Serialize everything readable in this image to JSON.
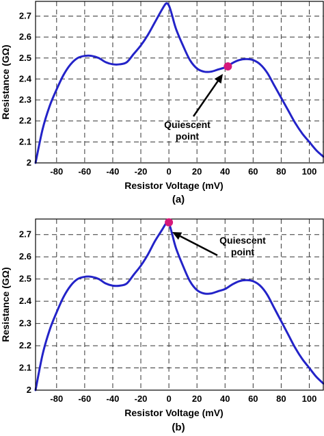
{
  "chart_data": [
    {
      "type": "line",
      "panel_label": "(a)",
      "xlabel": "Resistor Voltage (mV)",
      "ylabel": "Resistance (GΩ)",
      "xlim": [
        -95,
        110
      ],
      "ylim": [
        2.0,
        2.77
      ],
      "xticks": [
        -80,
        -60,
        -40,
        -20,
        0,
        20,
        40,
        60,
        80,
        100
      ],
      "yticks": [
        2,
        2.1,
        2.2,
        2.3,
        2.4,
        2.5,
        2.6,
        2.7
      ],
      "x_tick_labels": [
        "-80",
        "-60",
        "-40",
        "-20",
        "0",
        "20",
        "40",
        "60",
        "80",
        "100"
      ],
      "y_tick_labels": [
        "2",
        "2.1",
        "2.2",
        "2.3",
        "2.4",
        "2.5",
        "2.6",
        "2.7"
      ],
      "grid": true,
      "series": [
        {
          "x": [
            -95,
            -90,
            -85,
            -80,
            -75,
            -70,
            -65,
            -60,
            -55,
            -50,
            -45,
            -40,
            -35,
            -30,
            -25,
            -20,
            -15,
            -10,
            -5,
            -2,
            0,
            2,
            5,
            10,
            15,
            20,
            25,
            30,
            35,
            40,
            42,
            45,
            50,
            55,
            60,
            65,
            70,
            75,
            80,
            85,
            90,
            95,
            100,
            105,
            110
          ],
          "y": [
            2.0,
            2.16,
            2.27,
            2.35,
            2.42,
            2.47,
            2.5,
            2.51,
            2.51,
            2.5,
            2.48,
            2.47,
            2.47,
            2.48,
            2.52,
            2.56,
            2.61,
            2.67,
            2.73,
            2.76,
            2.75,
            2.71,
            2.64,
            2.56,
            2.49,
            2.45,
            2.435,
            2.435,
            2.445,
            2.455,
            2.46,
            2.475,
            2.49,
            2.495,
            2.49,
            2.47,
            2.43,
            2.37,
            2.31,
            2.25,
            2.19,
            2.14,
            2.1,
            2.06,
            2.03
          ]
        }
      ],
      "marker": {
        "x": 42,
        "y": 2.46
      },
      "annotation": {
        "lines": [
          "Quiescent",
          "point"
        ]
      },
      "colors": {
        "curve": "#2323c8",
        "marker": "#d6197a"
      }
    },
    {
      "type": "line",
      "panel_label": "(b)",
      "xlabel": "Resistor Voltage (mV)",
      "ylabel": "Resistance (GΩ)",
      "xlim": [
        -95,
        110
      ],
      "ylim": [
        2.0,
        2.77
      ],
      "xticks": [
        -80,
        -60,
        -40,
        -20,
        0,
        20,
        40,
        60,
        80,
        100
      ],
      "yticks": [
        2,
        2.1,
        2.2,
        2.3,
        2.4,
        2.5,
        2.6,
        2.7
      ],
      "x_tick_labels": [
        "-80",
        "-60",
        "-40",
        "-20",
        "0",
        "20",
        "40",
        "60",
        "80",
        "100"
      ],
      "y_tick_labels": [
        "2",
        "2.1",
        "2.2",
        "2.3",
        "2.4",
        "2.5",
        "2.6",
        "2.7"
      ],
      "grid": true,
      "series": [
        {
          "x": [
            -95,
            -90,
            -85,
            -80,
            -75,
            -70,
            -65,
            -60,
            -55,
            -50,
            -45,
            -40,
            -35,
            -30,
            -25,
            -20,
            -15,
            -10,
            -5,
            -2,
            0,
            2,
            5,
            10,
            15,
            20,
            25,
            30,
            35,
            40,
            45,
            50,
            55,
            60,
            65,
            70,
            75,
            80,
            85,
            90,
            95,
            100,
            105,
            110
          ],
          "y": [
            2.0,
            2.16,
            2.27,
            2.35,
            2.42,
            2.47,
            2.5,
            2.51,
            2.51,
            2.5,
            2.48,
            2.47,
            2.47,
            2.48,
            2.52,
            2.56,
            2.61,
            2.67,
            2.72,
            2.75,
            2.75,
            2.71,
            2.64,
            2.56,
            2.49,
            2.45,
            2.435,
            2.435,
            2.445,
            2.455,
            2.475,
            2.49,
            2.495,
            2.49,
            2.47,
            2.43,
            2.37,
            2.31,
            2.25,
            2.19,
            2.14,
            2.1,
            2.06,
            2.03
          ]
        }
      ],
      "marker": {
        "x": 0,
        "y": 2.755
      },
      "annotation": {
        "lines": [
          "Quiescent",
          "point"
        ]
      },
      "colors": {
        "curve": "#2323c8",
        "marker": "#d6197a"
      }
    }
  ]
}
